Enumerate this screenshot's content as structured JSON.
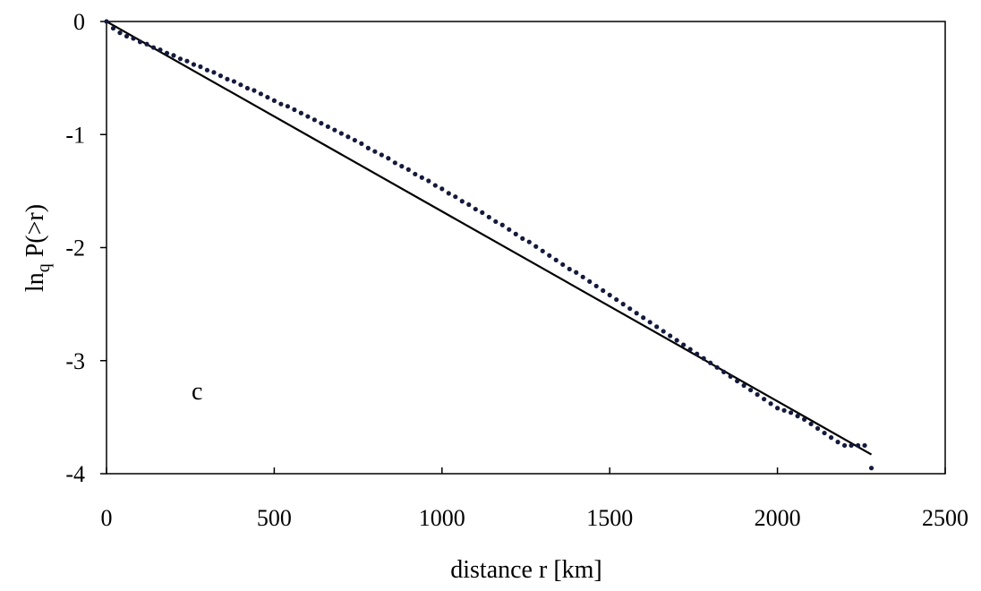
{
  "chart_data": {
    "type": "scatter",
    "xlabel": "distance r [km]",
    "ylabel": {
      "main": "ln",
      "sub": "q",
      "rest": " P(>r)"
    },
    "annotation": "c",
    "xlim": [
      0,
      2500
    ],
    "ylim": [
      -4,
      0
    ],
    "x_ticks": [
      "0",
      "500",
      "1000",
      "1500",
      "2000",
      "2500"
    ],
    "y_ticks": [
      "0",
      "-1",
      "-2",
      "-3",
      "-4"
    ],
    "grid": false,
    "legend": "none",
    "marker_color": "#141a3c",
    "line_color": "#000000",
    "fit_line": {
      "x": [
        0,
        2280
      ],
      "y": [
        0,
        -3.83
      ]
    },
    "series": [
      {
        "x": [
          0,
          20,
          40,
          60,
          80,
          100,
          120,
          140,
          160,
          180,
          200,
          220,
          240,
          260,
          280,
          300,
          320,
          340,
          360,
          380,
          400,
          420,
          440,
          460,
          480,
          500,
          520,
          540,
          560,
          580,
          600,
          620,
          640,
          660,
          680,
          700,
          720,
          740,
          760,
          780,
          800,
          820,
          840,
          860,
          880,
          900,
          920,
          940,
          960,
          980,
          1000,
          1020,
          1040,
          1060,
          1080,
          1100,
          1120,
          1140,
          1160,
          1180,
          1200,
          1220,
          1240,
          1260,
          1280,
          1300,
          1320,
          1340,
          1360,
          1380,
          1400,
          1420,
          1440,
          1460,
          1480,
          1500,
          1520,
          1540,
          1560,
          1580,
          1600,
          1620,
          1640,
          1660,
          1680,
          1700,
          1720,
          1740,
          1760,
          1780,
          1800,
          1820,
          1840,
          1860,
          1880,
          1900,
          1920,
          1940,
          1960,
          1980,
          2000,
          2020,
          2040,
          2060,
          2080,
          2100,
          2120,
          2140,
          2160,
          2180,
          2200,
          2220,
          2240,
          2260,
          2280
        ],
        "y": [
          0,
          -0.06,
          -0.1,
          -0.13,
          -0.15,
          -0.18,
          -0.2,
          -0.23,
          -0.25,
          -0.28,
          -0.3,
          -0.33,
          -0.35,
          -0.38,
          -0.4,
          -0.43,
          -0.45,
          -0.48,
          -0.51,
          -0.53,
          -0.56,
          -0.59,
          -0.61,
          -0.64,
          -0.67,
          -0.7,
          -0.73,
          -0.75,
          -0.78,
          -0.81,
          -0.84,
          -0.87,
          -0.9,
          -0.93,
          -0.96,
          -0.99,
          -1.02,
          -1.05,
          -1.08,
          -1.12,
          -1.15,
          -1.18,
          -1.21,
          -1.25,
          -1.28,
          -1.31,
          -1.35,
          -1.38,
          -1.41,
          -1.45,
          -1.48,
          -1.52,
          -1.55,
          -1.59,
          -1.62,
          -1.66,
          -1.69,
          -1.73,
          -1.77,
          -1.8,
          -1.84,
          -1.88,
          -1.92,
          -1.95,
          -1.99,
          -2.03,
          -2.07,
          -2.11,
          -2.15,
          -2.19,
          -2.22,
          -2.26,
          -2.3,
          -2.34,
          -2.38,
          -2.42,
          -2.46,
          -2.5,
          -2.54,
          -2.58,
          -2.62,
          -2.66,
          -2.7,
          -2.74,
          -2.78,
          -2.82,
          -2.86,
          -2.9,
          -2.94,
          -2.98,
          -3.02,
          -3.06,
          -3.1,
          -3.14,
          -3.18,
          -3.22,
          -3.26,
          -3.3,
          -3.34,
          -3.38,
          -3.42,
          -3.44,
          -3.46,
          -3.49,
          -3.52,
          -3.56,
          -3.6,
          -3.64,
          -3.68,
          -3.72,
          -3.75,
          -3.75,
          -3.75,
          -3.75,
          -3.95
        ]
      }
    ]
  }
}
